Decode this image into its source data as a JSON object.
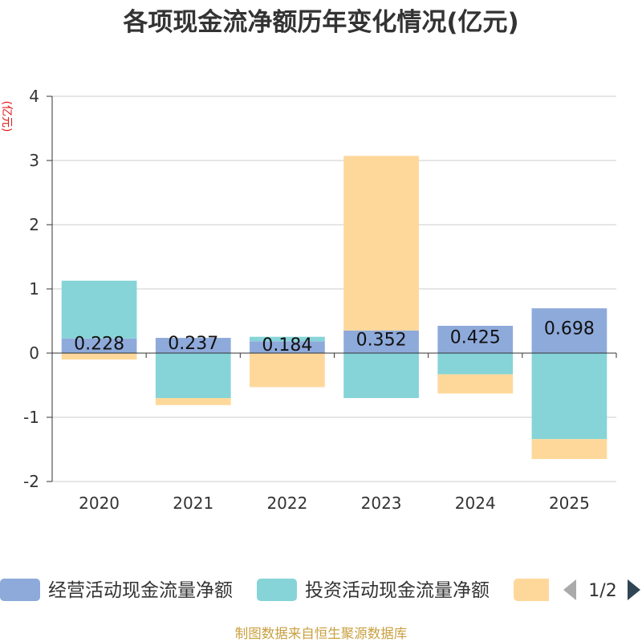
{
  "chart_data": {
    "type": "bar",
    "stacked": true,
    "title": "各项现金流净额历年变化情况(亿元)",
    "xlabel": "",
    "ylabel": "(亿元)",
    "categories": [
      "2020",
      "2021",
      "2022",
      "2023",
      "2024",
      "2025"
    ],
    "ylim": [
      -2,
      4
    ],
    "yticks": [
      -2,
      -1,
      0,
      1,
      2,
      3,
      4
    ],
    "grid": true,
    "legend_position": "bottom",
    "series": [
      {
        "name": "经营活动现金流量净额",
        "color": "#8eaadb",
        "values": [
          0.228,
          0.237,
          0.184,
          0.352,
          0.425,
          0.698
        ],
        "show_labels": true
      },
      {
        "name": "投资活动现金流量净额",
        "color": "#86d4d7",
        "values": [
          0.9,
          -0.7,
          0.07,
          -0.7,
          -0.33,
          -1.34
        ],
        "show_labels": false
      },
      {
        "name": "",
        "color": "#fed89b",
        "values": [
          -0.1,
          -0.11,
          -0.53,
          2.72,
          -0.3,
          -0.31
        ],
        "show_labels": false
      }
    ]
  },
  "legend": {
    "page_indicator": "1/2"
  },
  "source_note": "制图数据来自恒生聚源数据库",
  "colors": {
    "title": "#333333",
    "axis_name": "#e31a1c",
    "source_note": "#c9a040",
    "pager_active": "#2f4554",
    "pager_disabled": "#aaaaaa"
  }
}
